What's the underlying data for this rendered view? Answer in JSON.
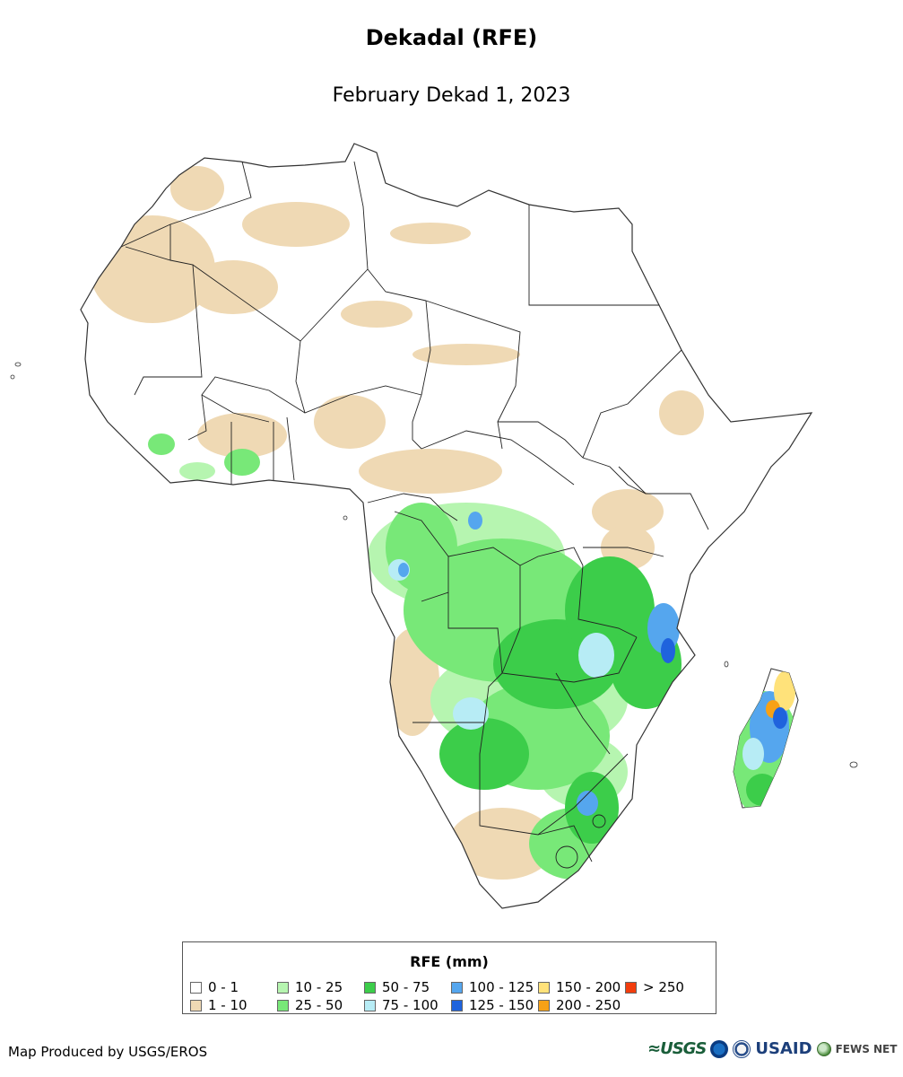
{
  "title": "Dekadal (RFE)",
  "subtitle": "February Dekad 1, 2023",
  "legend": {
    "title": "RFE (mm)",
    "items": [
      {
        "label": "0 - 1",
        "color": "#ffffff"
      },
      {
        "label": "1 - 10",
        "color": "#efd9b4"
      },
      {
        "label": "10 - 25",
        "color": "#b6f5b0"
      },
      {
        "label": "25 - 50",
        "color": "#78e878"
      },
      {
        "label": "50 - 75",
        "color": "#3ccd4a"
      },
      {
        "label": "75 - 100",
        "color": "#b7ecf5"
      },
      {
        "label": "100 - 125",
        "color": "#55a6ee"
      },
      {
        "label": "125 - 150",
        "color": "#1f63dd"
      },
      {
        "label": "150 - 200",
        "color": "#ffe27a"
      },
      {
        "label": "200 - 250",
        "color": "#f7a116"
      },
      {
        "label": "> 250",
        "color": "#f23d0d"
      }
    ]
  },
  "credit": "Map Produced by USGS/EROS",
  "logos": {
    "usgs": "≈USGS",
    "noaa_icon": "noaa-logo-icon",
    "doi_icon": "doi-seal-icon",
    "usaid": "USAID",
    "fews_icon": "fews-globe-icon",
    "fews": "FEWS NET"
  }
}
